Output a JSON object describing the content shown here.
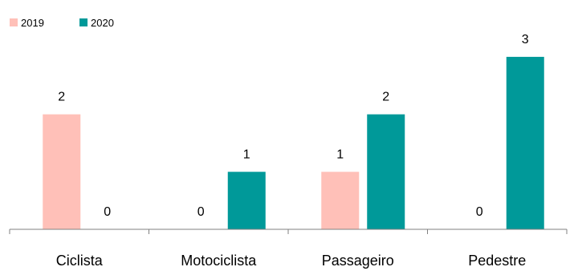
{
  "chart_data": {
    "type": "bar",
    "categories": [
      "Ciclista",
      "Motociclista",
      "Passageiro",
      "Pedestre"
    ],
    "series": [
      {
        "name": "2019",
        "color": "#ffc0b8",
        "values": [
          2,
          0,
          1,
          0
        ]
      },
      {
        "name": "2020",
        "color": "#009999",
        "values": [
          0,
          1,
          2,
          3
        ]
      }
    ],
    "ylim": [
      0,
      3.3
    ],
    "grid": false,
    "legend": "top-left",
    "data_labels": true
  }
}
